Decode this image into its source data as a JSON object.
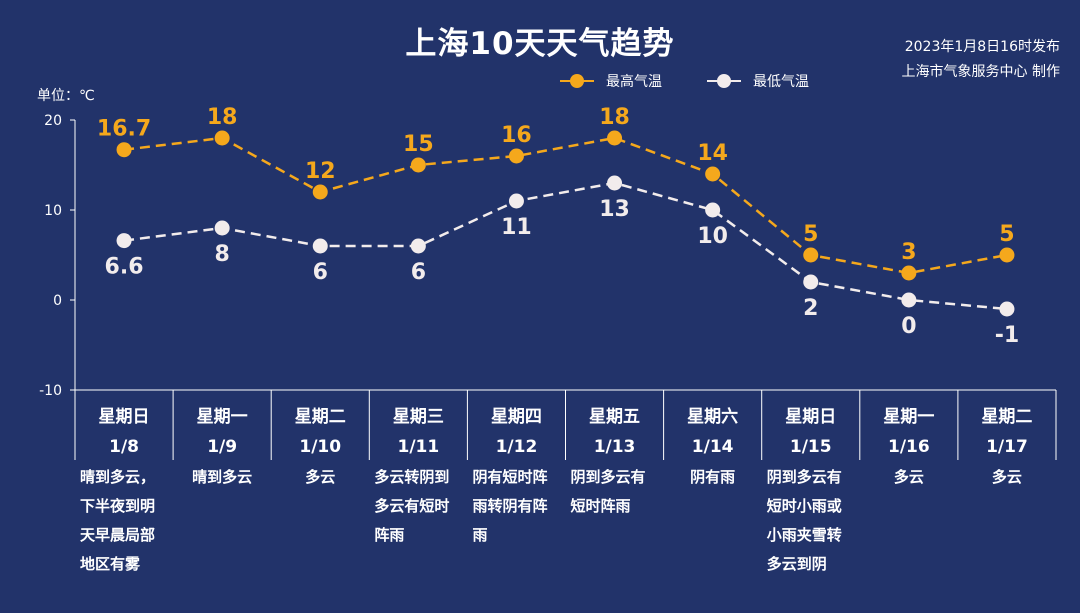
{
  "title": "上海10天天气趋势",
  "issued_date": "2023年1月8日16时发布",
  "issuer": "上海市气象服务中心 制作",
  "unit_label": "单位：℃",
  "colors": {
    "background": "#22336a",
    "high": "#f5a81c",
    "low": "#f2ecec",
    "axis": "#ffffff"
  },
  "chart_data": {
    "type": "line",
    "categories": [
      "1/8",
      "1/9",
      "1/10",
      "1/11",
      "1/12",
      "1/13",
      "1/14",
      "1/15",
      "1/16",
      "1/17"
    ],
    "ylim": [
      -10,
      20
    ],
    "yticks": [
      20,
      10,
      0,
      -10
    ],
    "legend_position": "top-right",
    "grid": false,
    "series": [
      {
        "name": "最高气温",
        "values": [
          16.7,
          18,
          12,
          15,
          16,
          18,
          14,
          5,
          3,
          5
        ],
        "labels": [
          "16.7",
          "18",
          "12",
          "15",
          "16",
          "18",
          "14",
          "5",
          "3",
          "5"
        ]
      },
      {
        "name": "最低气温",
        "values": [
          6.6,
          8,
          6,
          6,
          11,
          13,
          10,
          2,
          0,
          -1
        ],
        "labels": [
          "6.6",
          "8",
          "6",
          "6",
          "11",
          "13",
          "10",
          "2",
          "0",
          "-1"
        ]
      }
    ],
    "days": [
      {
        "weekday": "星期日",
        "date": "1/8",
        "lines": [
          "晴到多云，",
          "下半夜到明",
          "天早晨局部",
          "地区有雾"
        ]
      },
      {
        "weekday": "星期一",
        "date": "1/9",
        "lines": [
          "晴到多云"
        ]
      },
      {
        "weekday": "星期二",
        "date": "1/10",
        "lines": [
          "多云"
        ]
      },
      {
        "weekday": "星期三",
        "date": "1/11",
        "lines": [
          "多云转阴到",
          "多云有短时",
          "阵雨"
        ]
      },
      {
        "weekday": "星期四",
        "date": "1/12",
        "lines": [
          "阴有短时阵",
          "雨转阴有阵",
          "雨"
        ]
      },
      {
        "weekday": "星期五",
        "date": "1/13",
        "lines": [
          "阴到多云有",
          "短时阵雨"
        ]
      },
      {
        "weekday": "星期六",
        "date": "1/14",
        "lines": [
          "阴有雨"
        ]
      },
      {
        "weekday": "星期日",
        "date": "1/15",
        "lines": [
          "阴到多云有",
          "短时小雨或",
          "小雨夹雪转",
          "多云到阴"
        ]
      },
      {
        "weekday": "星期一",
        "date": "1/16",
        "lines": [
          "多云"
        ]
      },
      {
        "weekday": "星期二",
        "date": "1/17",
        "lines": [
          "多云"
        ]
      }
    ]
  }
}
